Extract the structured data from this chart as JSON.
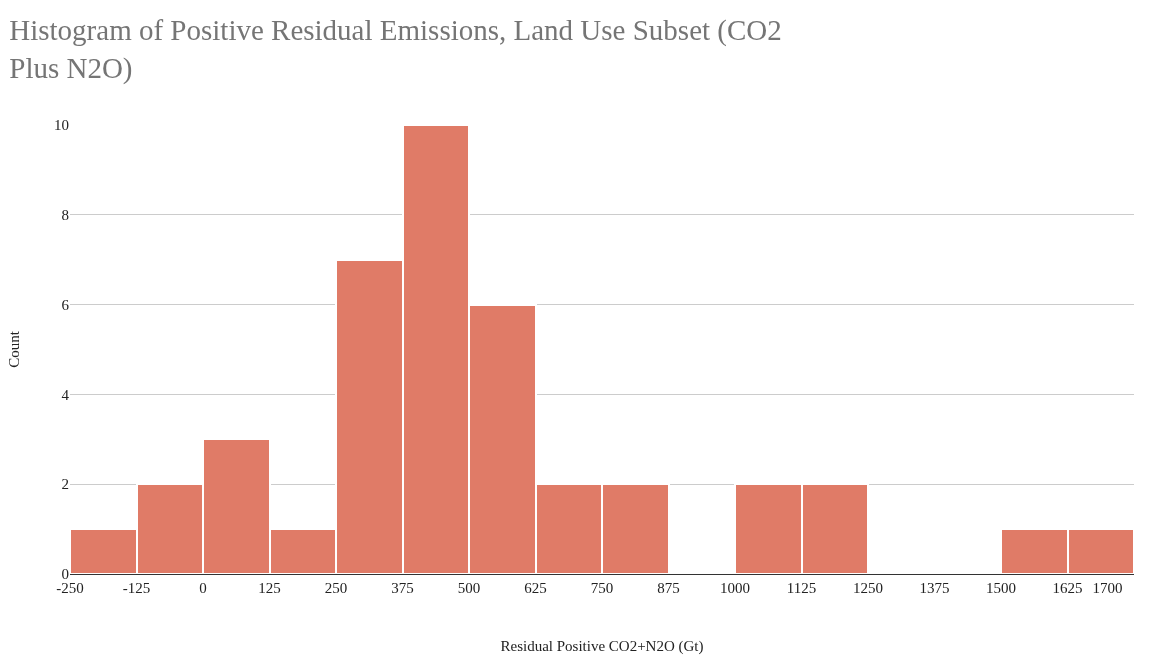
{
  "chart_data": {
    "type": "histogram",
    "title": "Histogram of Positive Residual Emissions, Land Use Subset (CO2 Plus N2O)",
    "xlabel": "Residual Positive CO2+N2O (Gt)",
    "ylabel": "Count",
    "bins": [
      -250,
      -125,
      0,
      125,
      250,
      375,
      500,
      625,
      750,
      875,
      1000,
      1125,
      1250,
      1375,
      1500,
      1625,
      1750
    ],
    "values": [
      1,
      2,
      3,
      1,
      7,
      10,
      6,
      2,
      2,
      0,
      2,
      2,
      0,
      0,
      1,
      1
    ],
    "color": "#e07b67",
    "xlim": [
      -250,
      1750
    ],
    "xticks": [
      -250,
      -125,
      0,
      125,
      250,
      375,
      500,
      625,
      750,
      875,
      1000,
      1125,
      1250,
      1375,
      1500,
      1625,
      1700
    ],
    "ylim": [
      0,
      10
    ],
    "yticks": [
      0,
      2,
      4,
      6,
      8,
      10
    ],
    "grid": "y"
  }
}
